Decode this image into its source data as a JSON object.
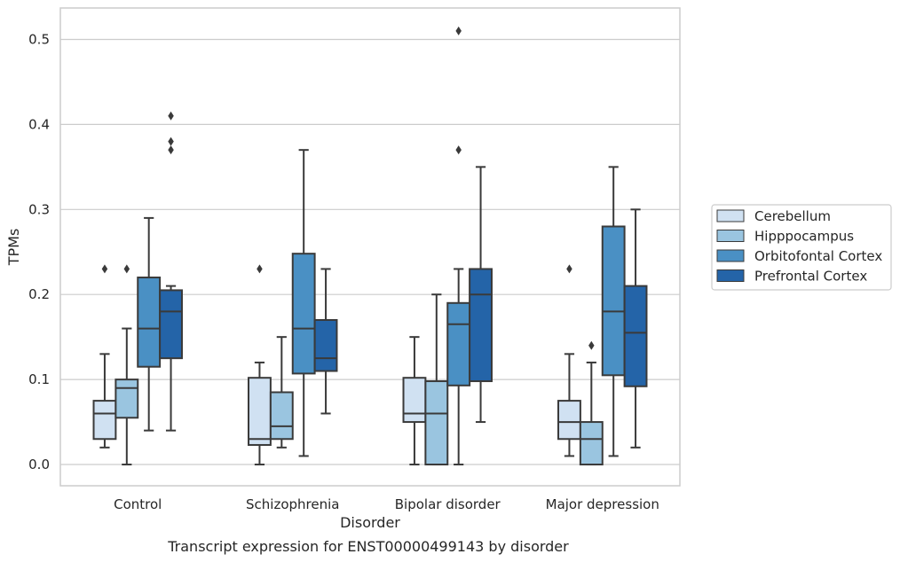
{
  "chart_data": {
    "type": "box",
    "title": "",
    "caption": "Transcript expression for ENST00000499143 by disorder",
    "xlabel": "Disorder",
    "ylabel": "TPMs",
    "ylim": [
      -0.025,
      0.537
    ],
    "yticks": [
      "0.0",
      "0.1",
      "0.2",
      "0.3",
      "0.4",
      "0.5"
    ],
    "grid": "horizontal",
    "legend_position": "right",
    "categories": [
      "Control",
      "Schizophrenia",
      "Bipolar disorder",
      "Major depression"
    ],
    "series": [
      {
        "name": "Cerebellum",
        "color": "#d0e1f2",
        "boxes": [
          {
            "whislo": 0.02,
            "q1": 0.03,
            "med": 0.06,
            "q3": 0.075,
            "whishi": 0.13,
            "fliers": [
              0.23
            ]
          },
          {
            "whislo": 0.0,
            "q1": 0.023,
            "med": 0.03,
            "q3": 0.102,
            "whishi": 0.12,
            "fliers": [
              0.23
            ]
          },
          {
            "whislo": 0.0,
            "q1": 0.05,
            "med": 0.06,
            "q3": 0.102,
            "whishi": 0.15,
            "fliers": []
          },
          {
            "whislo": 0.01,
            "q1": 0.03,
            "med": 0.05,
            "q3": 0.075,
            "whishi": 0.13,
            "fliers": [
              0.23
            ]
          }
        ]
      },
      {
        "name": "Hipppocampus",
        "color": "#9ac5e0",
        "boxes": [
          {
            "whislo": 0.0,
            "q1": 0.055,
            "med": 0.09,
            "q3": 0.1,
            "whishi": 0.16,
            "fliers": [
              0.23
            ]
          },
          {
            "whislo": 0.02,
            "q1": 0.03,
            "med": 0.045,
            "q3": 0.085,
            "whishi": 0.15,
            "fliers": []
          },
          {
            "whislo": 0.0,
            "q1": 0.0,
            "med": 0.06,
            "q3": 0.098,
            "whishi": 0.2,
            "fliers": []
          },
          {
            "whislo": 0.0,
            "q1": 0.0,
            "med": 0.03,
            "q3": 0.05,
            "whishi": 0.12,
            "fliers": [
              0.14
            ]
          }
        ]
      },
      {
        "name": "Orbitofontal Cortex",
        "color": "#4a90c4",
        "boxes": [
          {
            "whislo": 0.04,
            "q1": 0.115,
            "med": 0.16,
            "q3": 0.22,
            "whishi": 0.29,
            "fliers": []
          },
          {
            "whislo": 0.01,
            "q1": 0.107,
            "med": 0.16,
            "q3": 0.248,
            "whishi": 0.37,
            "fliers": []
          },
          {
            "whislo": 0.0,
            "q1": 0.093,
            "med": 0.165,
            "q3": 0.19,
            "whishi": 0.23,
            "fliers": [
              0.37,
              0.51
            ]
          },
          {
            "whislo": 0.01,
            "q1": 0.105,
            "med": 0.18,
            "q3": 0.28,
            "whishi": 0.35,
            "fliers": []
          }
        ]
      },
      {
        "name": "Prefrontal Cortex",
        "color": "#2464a8",
        "boxes": [
          {
            "whislo": 0.04,
            "q1": 0.125,
            "med": 0.18,
            "q3": 0.205,
            "whishi": 0.21,
            "fliers": [
              0.37,
              0.38,
              0.41
            ]
          },
          {
            "whislo": 0.06,
            "q1": 0.11,
            "med": 0.125,
            "q3": 0.17,
            "whishi": 0.23,
            "fliers": []
          },
          {
            "whislo": 0.05,
            "q1": 0.098,
            "med": 0.2,
            "q3": 0.23,
            "whishi": 0.35,
            "fliers": []
          },
          {
            "whislo": 0.02,
            "q1": 0.092,
            "med": 0.155,
            "q3": 0.21,
            "whishi": 0.3,
            "fliers": []
          }
        ]
      }
    ]
  }
}
